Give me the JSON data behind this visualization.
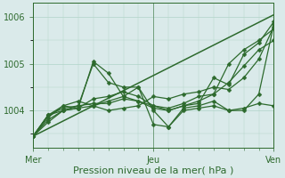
{
  "title": "Pression niveau de la mer( hPa )",
  "bg_color": "#daeaea",
  "line_color": "#2d6a2d",
  "grid_color": "#b0d4c8",
  "yticks": [
    1004,
    1005,
    1006
  ],
  "ylim": [
    1003.2,
    1006.3
  ],
  "xlim": [
    0,
    48
  ],
  "xtick_positions": [
    0,
    24,
    48
  ],
  "xtick_labels": [
    "Mer",
    "Jeu",
    "Ven"
  ],
  "lines": [
    {
      "x": [
        0,
        3,
        6,
        9,
        12,
        15,
        18,
        21,
        24,
        27,
        30,
        33,
        36,
        39,
        42,
        45,
        48
      ],
      "y": [
        1003.45,
        1003.75,
        1004.0,
        1004.05,
        1005.05,
        1004.8,
        1004.3,
        1004.5,
        1003.7,
        1003.65,
        1004.0,
        1004.05,
        1004.1,
        1004.0,
        1004.05,
        1004.15,
        1004.1
      ],
      "marker": true
    },
    {
      "x": [
        0,
        3,
        6,
        9,
        12,
        15,
        18,
        21,
        24,
        27,
        30,
        33,
        36,
        39,
        42,
        45,
        48
      ],
      "y": [
        1003.45,
        1003.8,
        1004.0,
        1004.1,
        1005.0,
        1004.6,
        1004.5,
        1004.5,
        1004.0,
        1003.65,
        1004.05,
        1004.1,
        1004.2,
        1004.0,
        1004.0,
        1004.35,
        1005.85
      ],
      "marker": true
    },
    {
      "x": [
        0,
        3,
        6,
        9,
        12,
        15,
        18,
        21,
        24,
        27,
        30,
        33,
        36,
        39,
        42,
        45,
        48
      ],
      "y": [
        1003.45,
        1003.85,
        1004.1,
        1004.05,
        1004.25,
        1004.3,
        1004.4,
        1004.3,
        1004.1,
        1004.0,
        1004.1,
        1004.15,
        1004.7,
        1004.55,
        1005.2,
        1005.45,
        1005.9
      ],
      "marker": true
    },
    {
      "x": [
        0,
        3,
        6,
        9,
        12,
        15,
        18,
        21,
        24,
        27,
        30,
        33,
        36,
        39,
        42,
        45,
        48
      ],
      "y": [
        1003.45,
        1003.9,
        1004.0,
        1004.05,
        1004.1,
        1004.2,
        1004.3,
        1004.2,
        1004.05,
        1004.0,
        1004.1,
        1004.2,
        1004.35,
        1005.0,
        1005.3,
        1005.5,
        1005.75
      ],
      "marker": true
    },
    {
      "x": [
        0,
        3,
        6,
        9,
        12,
        15,
        18,
        21,
        24,
        27,
        30,
        33,
        36,
        39,
        42,
        45,
        48
      ],
      "y": [
        1003.45,
        1003.9,
        1004.05,
        1004.1,
        1004.15,
        1004.15,
        1004.25,
        1004.2,
        1004.1,
        1004.05,
        1004.15,
        1004.3,
        1004.35,
        1004.6,
        1004.95,
        1005.3,
        1005.5
      ],
      "marker": true
    },
    {
      "x": [
        0,
        3,
        6,
        9,
        12,
        15,
        18,
        21,
        24,
        27,
        30,
        33,
        36,
        39,
        42,
        45,
        48
      ],
      "y": [
        1003.45,
        1003.9,
        1004.1,
        1004.2,
        1004.1,
        1004.0,
        1004.05,
        1004.1,
        1004.3,
        1004.25,
        1004.35,
        1004.4,
        1004.5,
        1004.45,
        1004.7,
        1005.1,
        1005.8
      ],
      "marker": true
    },
    {
      "x": [
        0,
        48
      ],
      "y": [
        1003.45,
        1006.05
      ],
      "marker": false
    }
  ],
  "markersize": 2.5,
  "linewidth": 0.9,
  "title_fontsize": 8,
  "tick_fontsize": 7
}
